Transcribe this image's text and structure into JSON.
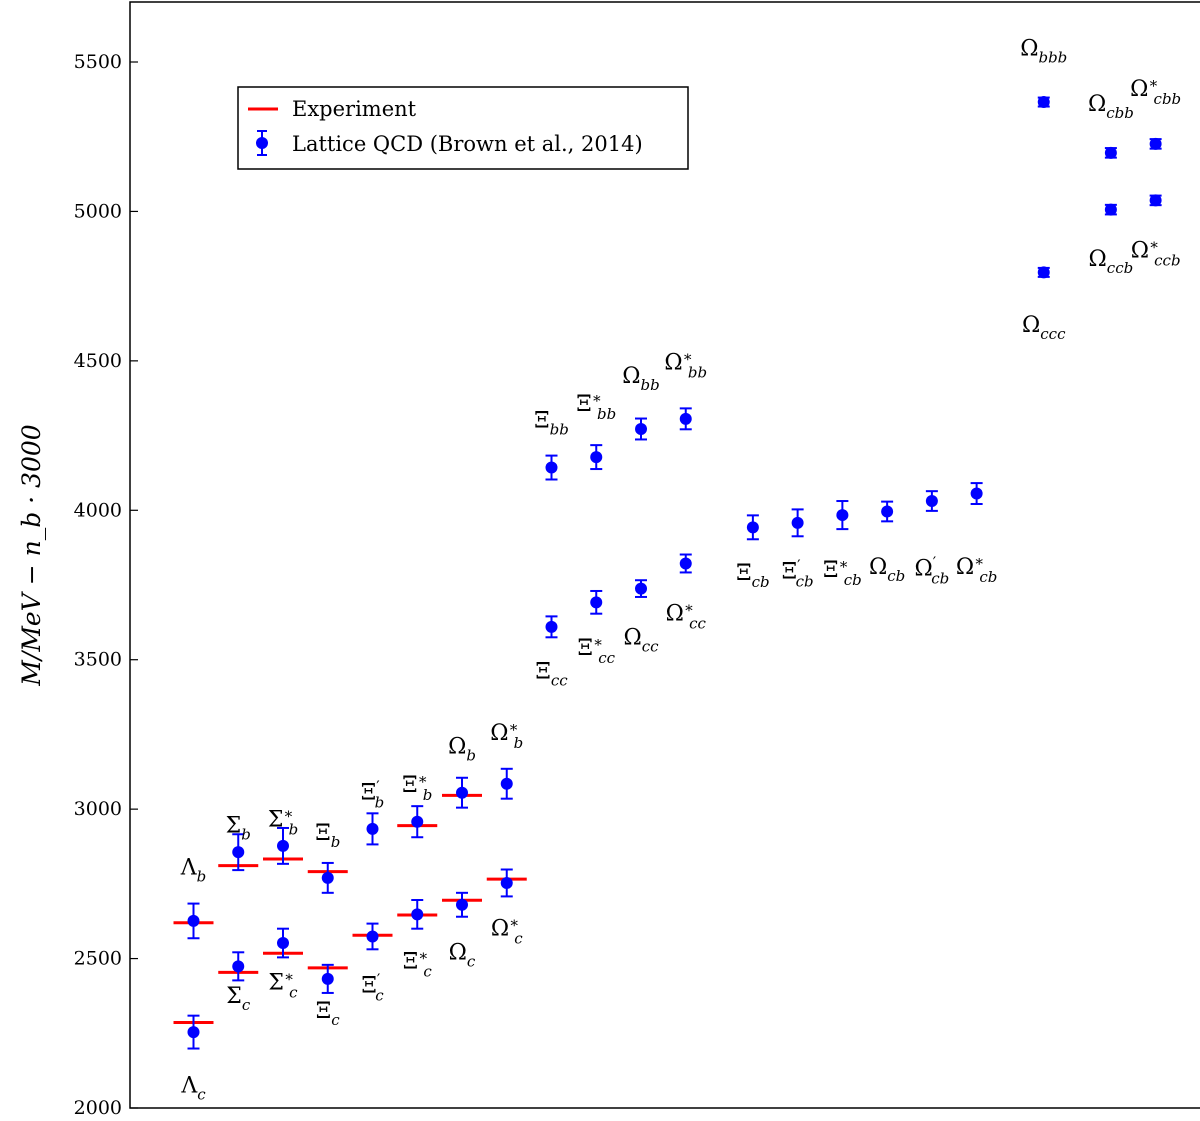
{
  "chart_data": {
    "type": "scatter",
    "title": "",
    "xlabel": "",
    "ylabel": "M/MeV − n_b · 3000",
    "ylim": [
      2000,
      5700
    ],
    "yticks": [
      2000,
      2500,
      3000,
      3500,
      4000,
      4500,
      5000,
      5500
    ],
    "xlim": [
      0,
      23
    ],
    "grid": false,
    "legend": {
      "placement": "upper-left",
      "entries": [
        "Experiment",
        "Lattice QCD (Brown et al., 2014)"
      ]
    },
    "colors": {
      "experiment": "#ff0000",
      "lattice": "#0000ff"
    },
    "series": [
      {
        "name": "Lattice QCD (Brown et al., 2014)",
        "points": [
          {
            "label": "Λ_c",
            "x": 1,
            "y": 2254,
            "err": 55,
            "lx": 1,
            "ly": 2075
          },
          {
            "label": "Λ_b",
            "x": 1,
            "y": 2626,
            "err": 58,
            "lx": 1,
            "ly": 2805
          },
          {
            "label": "Σ_c",
            "x": 2,
            "y": 2474,
            "err": 47,
            "lx": 2,
            "ly": 2375
          },
          {
            "label": "Σ_b",
            "x": 2,
            "y": 2856,
            "err": 60,
            "lx": 2,
            "ly": 2945
          },
          {
            "label": "Σ*_c",
            "x": 3,
            "y": 2552,
            "err": 48,
            "lx": 3,
            "ly": 2420
          },
          {
            "label": "Σ*_b",
            "x": 3,
            "y": 2877,
            "err": 60,
            "lx": 3,
            "ly": 2965
          },
          {
            "label": "Ξ_c",
            "x": 4,
            "y": 2432,
            "err": 47,
            "lx": 4,
            "ly": 2325
          },
          {
            "label": "Ξ_b",
            "x": 4,
            "y": 2770,
            "err": 50,
            "lx": 4,
            "ly": 2920
          },
          {
            "label": "Ξ′_c",
            "x": 5,
            "y": 2574,
            "err": 43,
            "lx": 5,
            "ly": 2410
          },
          {
            "label": "Ξ′_b",
            "x": 5,
            "y": 2934,
            "err": 52,
            "lx": 5,
            "ly": 3055
          },
          {
            "label": "Ξ*_c",
            "x": 6,
            "y": 2648,
            "err": 48,
            "lx": 6,
            "ly": 2490
          },
          {
            "label": "Ξ*_b",
            "x": 6,
            "y": 2958,
            "err": 52,
            "lx": 6,
            "ly": 3080
          },
          {
            "label": "Ω_c",
            "x": 7,
            "y": 2680,
            "err": 40,
            "lx": 7,
            "ly": 2520
          },
          {
            "label": "Ω_b",
            "x": 7,
            "y": 3055,
            "err": 50,
            "lx": 7,
            "ly": 3210
          },
          {
            "label": "Ω*_c",
            "x": 8,
            "y": 2753,
            "err": 45,
            "lx": 8,
            "ly": 2600
          },
          {
            "label": "Ω*_b",
            "x": 8,
            "y": 3085,
            "err": 50,
            "lx": 8,
            "ly": 3255
          },
          {
            "label": "Ξ_cc",
            "x": 9,
            "y": 3610,
            "err": 35,
            "lx": 9,
            "ly": 3460
          },
          {
            "label": "Ξ_bb",
            "x": 9,
            "y": 4143,
            "err": 40,
            "lx": 9,
            "ly": 4300
          },
          {
            "label": "Ξ*_cc",
            "x": 10,
            "y": 3692,
            "err": 38,
            "lx": 10,
            "ly": 3540
          },
          {
            "label": "Ξ*_bb",
            "x": 10,
            "y": 4178,
            "err": 40,
            "lx": 10,
            "ly": 4355
          },
          {
            "label": "Ω_cc",
            "x": 11,
            "y": 3738,
            "err": 28,
            "lx": 11,
            "ly": 3575
          },
          {
            "label": "Ω_bb",
            "x": 11,
            "y": 4272,
            "err": 35,
            "lx": 11,
            "ly": 4450
          },
          {
            "label": "Ω*_cc",
            "x": 12,
            "y": 3822,
            "err": 30,
            "lx": 12,
            "ly": 3655
          },
          {
            "label": "Ω*_bb",
            "x": 12,
            "y": 4306,
            "err": 35,
            "lx": 12,
            "ly": 4495
          },
          {
            "label": "Ξ_cb",
            "x": 13.5,
            "y": 3943,
            "err": 40,
            "lx": 13.5,
            "ly": 3790
          },
          {
            "label": "Ξ′_cb",
            "x": 14.5,
            "y": 3958,
            "err": 45,
            "lx": 14.5,
            "ly": 3795
          },
          {
            "label": "Ξ*_cb",
            "x": 15.5,
            "y": 3984,
            "err": 47,
            "lx": 15.5,
            "ly": 3800
          },
          {
            "label": "Ω_cb",
            "x": 16.5,
            "y": 3996,
            "err": 33,
            "lx": 16.5,
            "ly": 3810
          },
          {
            "label": "Ω′_cb",
            "x": 17.5,
            "y": 4031,
            "err": 33,
            "lx": 17.5,
            "ly": 3805
          },
          {
            "label": "Ω*_cb",
            "x": 18.5,
            "y": 4056,
            "err": 35,
            "lx": 18.5,
            "ly": 3810
          },
          {
            "label": "Ω_ccc",
            "x": 20,
            "y": 4796,
            "err": 15,
            "lx": 20,
            "ly": 4620
          },
          {
            "label": "Ω_bbb",
            "x": 20,
            "y": 5366,
            "err": 15,
            "lx": 20,
            "ly": 5545
          },
          {
            "label": "Ω_ccb",
            "x": 21.5,
            "y": 5006,
            "err": 16,
            "lx": 21.5,
            "ly": 4840
          },
          {
            "label": "Ω_cbb",
            "x": 21.5,
            "y": 5196,
            "err": 16,
            "lx": 21.5,
            "ly": 5360
          },
          {
            "label": "Ω*_ccb",
            "x": 22.5,
            "y": 5037,
            "err": 16,
            "lx": 22.5,
            "ly": 4870
          },
          {
            "label": "Ω*_cbb",
            "x": 22.5,
            "y": 5226,
            "err": 16,
            "lx": 22.5,
            "ly": 5410
          }
        ]
      },
      {
        "name": "Experiment",
        "points": [
          {
            "label": "Λ_c",
            "x": 1,
            "y": 2286
          },
          {
            "label": "Λ_b",
            "x": 1,
            "y": 2620
          },
          {
            "label": "Σ_c",
            "x": 2,
            "y": 2454
          },
          {
            "label": "Σ_b",
            "x": 2,
            "y": 2811
          },
          {
            "label": "Σ*_c",
            "x": 3,
            "y": 2518
          },
          {
            "label": "Σ*_b",
            "x": 3,
            "y": 2833
          },
          {
            "label": "Ξ_c",
            "x": 4,
            "y": 2469
          },
          {
            "label": "Ξ_b",
            "x": 4,
            "y": 2791
          },
          {
            "label": "Ξ′_c",
            "x": 5,
            "y": 2578
          },
          {
            "label": "Ξ*_c",
            "x": 6,
            "y": 2646
          },
          {
            "label": "Ξ*_b",
            "x": 6,
            "y": 2945
          },
          {
            "label": "Ω_c",
            "x": 7,
            "y": 2695
          },
          {
            "label": "Ω_b",
            "x": 7,
            "y": 3046
          },
          {
            "label": "Ω*_c",
            "x": 8,
            "y": 2766
          }
        ]
      }
    ]
  }
}
